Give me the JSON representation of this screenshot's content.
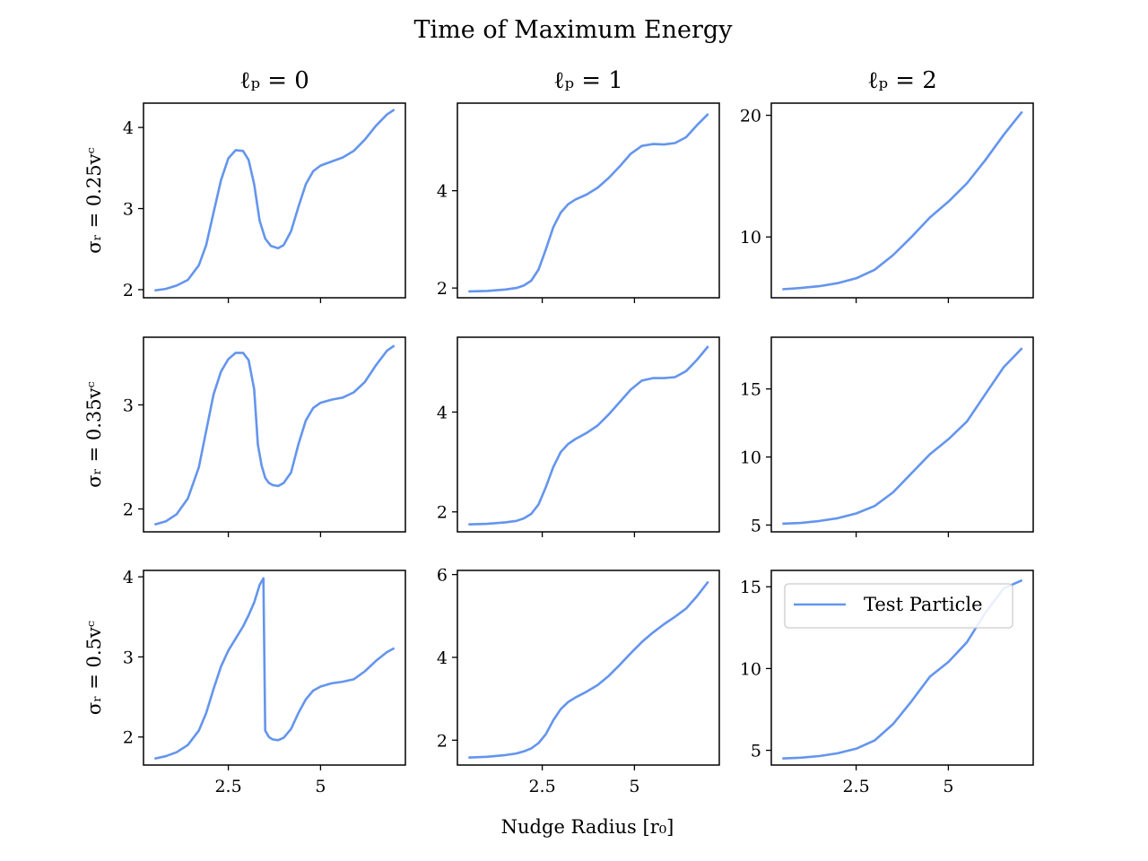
{
  "figure": {
    "title": "Time of Maximum Energy",
    "xlabel": "Nudge Radius [r₀]"
  },
  "colors": {
    "series": "#6495ed",
    "axes": "#000000",
    "legend_edge": "#cccccc"
  },
  "legend": {
    "label": "Test Particle",
    "location": "upper-left"
  },
  "chart_data": [
    {
      "type": "line",
      "row_label": "σᵣ = 0.25vᶜ",
      "col_title": "ℓₚ = 0",
      "xlim": [
        0.2,
        7.3
      ],
      "ylim": [
        1.9,
        4.3
      ],
      "xticks": [
        2.5,
        5.0
      ],
      "yticks": [
        2,
        3,
        4
      ],
      "x": [
        0.5,
        0.8,
        1.1,
        1.4,
        1.7,
        1.9,
        2.1,
        2.3,
        2.5,
        2.7,
        2.9,
        3.05,
        3.2,
        3.35,
        3.5,
        3.65,
        3.85,
        4.0,
        4.2,
        4.4,
        4.6,
        4.8,
        5.0,
        5.3,
        5.6,
        5.9,
        6.2,
        6.5,
        6.8,
        7.0
      ],
      "series": [
        {
          "values": [
            1.99,
            2.01,
            2.05,
            2.12,
            2.3,
            2.55,
            2.95,
            3.35,
            3.62,
            3.72,
            3.71,
            3.6,
            3.3,
            2.85,
            2.63,
            2.54,
            2.51,
            2.55,
            2.72,
            3.02,
            3.3,
            3.46,
            3.53,
            3.58,
            3.63,
            3.71,
            3.85,
            4.02,
            4.16,
            4.22
          ]
        }
      ]
    },
    {
      "type": "line",
      "row_label": "",
      "col_title": "ℓₚ = 1",
      "xlim": [
        0.2,
        7.3
      ],
      "ylim": [
        1.8,
        5.8
      ],
      "xticks": [
        2.5,
        5.0
      ],
      "yticks": [
        2,
        4
      ],
      "x": [
        0.5,
        1.0,
        1.5,
        1.8,
        2.0,
        2.2,
        2.4,
        2.6,
        2.8,
        3.0,
        3.2,
        3.4,
        3.7,
        4.0,
        4.3,
        4.6,
        4.9,
        5.2,
        5.5,
        5.8,
        6.1,
        6.4,
        6.7,
        7.0
      ],
      "series": [
        {
          "values": [
            1.93,
            1.94,
            1.97,
            2.0,
            2.05,
            2.15,
            2.38,
            2.8,
            3.25,
            3.55,
            3.72,
            3.82,
            3.92,
            4.06,
            4.26,
            4.5,
            4.76,
            4.92,
            4.96,
            4.95,
            4.98,
            5.1,
            5.35,
            5.58
          ]
        }
      ]
    },
    {
      "type": "line",
      "row_label": "",
      "col_title": "ℓₚ = 2",
      "xlim": [
        0.2,
        7.3
      ],
      "ylim": [
        5.0,
        21.0
      ],
      "xticks": [
        2.5,
        5.0
      ],
      "yticks": [
        10,
        20
      ],
      "x": [
        0.5,
        1.0,
        1.5,
        2.0,
        2.5,
        3.0,
        3.5,
        4.0,
        4.5,
        5.0,
        5.5,
        6.0,
        6.5,
        7.0
      ],
      "series": [
        {
          "values": [
            5.7,
            5.8,
            5.95,
            6.2,
            6.6,
            7.3,
            8.5,
            10.0,
            11.6,
            12.9,
            14.4,
            16.3,
            18.4,
            20.3
          ]
        }
      ]
    },
    {
      "type": "line",
      "row_label": "σᵣ = 0.35vᶜ",
      "col_title": "",
      "xlim": [
        0.2,
        7.3
      ],
      "ylim": [
        1.78,
        3.65
      ],
      "xticks": [
        2.5,
        5.0
      ],
      "yticks": [
        2,
        3
      ],
      "x": [
        0.5,
        0.8,
        1.1,
        1.4,
        1.7,
        1.9,
        2.1,
        2.3,
        2.5,
        2.7,
        2.9,
        3.05,
        3.2,
        3.3,
        3.4,
        3.5,
        3.6,
        3.7,
        3.85,
        4.0,
        4.2,
        4.4,
        4.6,
        4.8,
        5.0,
        5.3,
        5.6,
        5.9,
        6.2,
        6.5,
        6.8,
        7.0
      ],
      "series": [
        {
          "values": [
            1.85,
            1.88,
            1.95,
            2.1,
            2.4,
            2.75,
            3.1,
            3.32,
            3.44,
            3.5,
            3.5,
            3.43,
            3.15,
            2.62,
            2.42,
            2.3,
            2.25,
            2.23,
            2.22,
            2.25,
            2.35,
            2.62,
            2.85,
            2.97,
            3.02,
            3.05,
            3.07,
            3.12,
            3.22,
            3.38,
            3.52,
            3.57
          ]
        }
      ]
    },
    {
      "type": "line",
      "row_label": "",
      "col_title": "",
      "xlim": [
        0.2,
        7.3
      ],
      "ylim": [
        1.6,
        5.5
      ],
      "xticks": [
        2.5,
        5.0
      ],
      "yticks": [
        2,
        4
      ],
      "x": [
        0.5,
        1.0,
        1.5,
        1.8,
        2.0,
        2.2,
        2.4,
        2.6,
        2.8,
        3.0,
        3.2,
        3.4,
        3.7,
        4.0,
        4.3,
        4.6,
        4.9,
        5.2,
        5.5,
        5.8,
        6.1,
        6.4,
        6.7,
        7.0
      ],
      "series": [
        {
          "values": [
            1.75,
            1.76,
            1.79,
            1.82,
            1.87,
            1.96,
            2.15,
            2.5,
            2.9,
            3.2,
            3.36,
            3.46,
            3.58,
            3.73,
            3.95,
            4.2,
            4.45,
            4.63,
            4.68,
            4.68,
            4.7,
            4.82,
            5.05,
            5.32
          ]
        }
      ]
    },
    {
      "type": "line",
      "row_label": "",
      "col_title": "",
      "xlim": [
        0.2,
        7.3
      ],
      "ylim": [
        4.5,
        18.8
      ],
      "xticks": [
        2.5,
        5.0
      ],
      "yticks": [
        5,
        10,
        15
      ],
      "x": [
        0.5,
        1.0,
        1.5,
        2.0,
        2.5,
        3.0,
        3.5,
        4.0,
        4.5,
        5.0,
        5.5,
        6.0,
        6.5,
        7.0
      ],
      "series": [
        {
          "values": [
            5.1,
            5.15,
            5.3,
            5.5,
            5.85,
            6.4,
            7.4,
            8.8,
            10.2,
            11.3,
            12.6,
            14.6,
            16.6,
            18.0
          ]
        }
      ]
    },
    {
      "type": "line",
      "row_label": "σᵣ = 0.5vᶜ",
      "col_title": "",
      "xlim": [
        0.2,
        7.3
      ],
      "ylim": [
        1.65,
        4.08
      ],
      "xticks": [
        2.5,
        5.0
      ],
      "yticks": [
        2,
        3,
        4
      ],
      "x": [
        0.5,
        0.8,
        1.1,
        1.4,
        1.7,
        1.9,
        2.1,
        2.3,
        2.5,
        2.7,
        2.9,
        3.05,
        3.2,
        3.35,
        3.45,
        3.5,
        3.6,
        3.7,
        3.85,
        4.0,
        4.2,
        4.4,
        4.6,
        4.8,
        5.0,
        5.3,
        5.6,
        5.9,
        6.2,
        6.5,
        6.8,
        7.0
      ],
      "series": [
        {
          "values": [
            1.73,
            1.76,
            1.81,
            1.9,
            2.08,
            2.3,
            2.6,
            2.88,
            3.08,
            3.23,
            3.38,
            3.52,
            3.68,
            3.9,
            3.98,
            2.08,
            2.0,
            1.97,
            1.96,
            1.99,
            2.1,
            2.3,
            2.47,
            2.58,
            2.63,
            2.67,
            2.69,
            2.72,
            2.82,
            2.95,
            3.06,
            3.11
          ]
        }
      ]
    },
    {
      "type": "line",
      "row_label": "",
      "col_title": "",
      "xlim": [
        0.2,
        7.3
      ],
      "ylim": [
        1.4,
        6.1
      ],
      "xticks": [
        2.5,
        5.0
      ],
      "yticks": [
        2,
        4,
        6
      ],
      "x": [
        0.5,
        1.0,
        1.5,
        1.8,
        2.0,
        2.2,
        2.4,
        2.6,
        2.8,
        3.0,
        3.2,
        3.4,
        3.7,
        4.0,
        4.3,
        4.6,
        4.9,
        5.2,
        5.5,
        5.8,
        6.1,
        6.4,
        6.7,
        7.0
      ],
      "series": [
        {
          "values": [
            1.58,
            1.6,
            1.64,
            1.68,
            1.73,
            1.8,
            1.93,
            2.15,
            2.48,
            2.75,
            2.92,
            3.03,
            3.17,
            3.33,
            3.55,
            3.82,
            4.1,
            4.37,
            4.6,
            4.8,
            4.98,
            5.18,
            5.48,
            5.83
          ]
        }
      ]
    },
    {
      "type": "line",
      "row_label": "",
      "col_title": "",
      "xlim": [
        0.2,
        7.3
      ],
      "ylim": [
        4.1,
        16.0
      ],
      "xticks": [
        2.5,
        5.0
      ],
      "yticks": [
        5,
        10,
        15
      ],
      "x": [
        0.5,
        1.0,
        1.5,
        2.0,
        2.5,
        3.0,
        3.5,
        4.0,
        4.5,
        5.0,
        5.5,
        6.0,
        6.5,
        7.0
      ],
      "series": [
        {
          "values": [
            4.5,
            4.55,
            4.65,
            4.82,
            5.1,
            5.6,
            6.6,
            8.0,
            9.5,
            10.4,
            11.6,
            13.4,
            14.9,
            15.4
          ]
        }
      ]
    }
  ]
}
